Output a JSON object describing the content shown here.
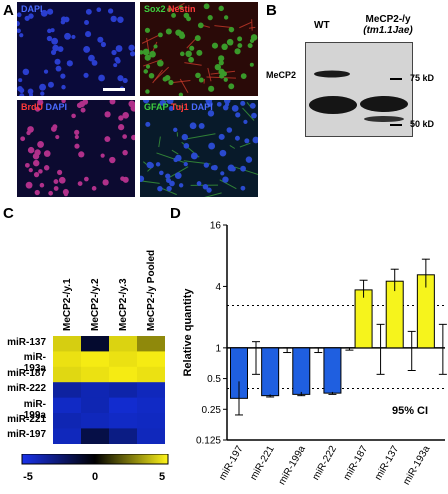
{
  "panels": {
    "a": "A",
    "b": "B",
    "c": "C",
    "d": "D"
  },
  "micrographs": [
    {
      "tags": [
        {
          "text": "DAPI",
          "color": "#4a6bff"
        }
      ],
      "bg": "#0a0a3a",
      "dot": "#2a3ecf"
    },
    {
      "tags": [
        {
          "text": "Sox2 ",
          "color": "#3ecf3e"
        },
        {
          "text": "Nestin",
          "color": "#ff3a3a"
        }
      ],
      "bg": "#2a0a08",
      "dot": "#3a9a2a"
    },
    {
      "tags": [
        {
          "text": "BrdU ",
          "color": "#ff3a3a"
        },
        {
          "text": "DAPI",
          "color": "#4a6bff"
        }
      ],
      "bg": "#0c0a30",
      "dot": "#b0308a"
    },
    {
      "tags": [
        {
          "text": "GFAP ",
          "color": "#3ecf3e"
        },
        {
          "text": "Tuj1 ",
          "color": "#ff3a3a"
        },
        {
          "text": "DAPI",
          "color": "#4a6bff"
        }
      ],
      "bg": "#081a2a",
      "dot": "#2a4acf"
    }
  ],
  "blot": {
    "wt": "WT",
    "ko_line1": "MeCP2-/y",
    "ko_line2": "(tm1.1Jae)",
    "protein": "MeCP2",
    "marker_hi": "75 kD",
    "marker_lo": "50 kD"
  },
  "heatmap": {
    "columns": [
      "MeCP2-/y.1",
      "MeCP2-/y.2",
      "MeCP2-/y.3",
      "MeCP2-/y Pooled"
    ],
    "rows": [
      "miR-137",
      "miR-193a",
      "miR-187",
      "miR-222",
      "miR-199a",
      "miR-221",
      "miR-197"
    ],
    "values": [
      [
        4.2,
        -1.0,
        4.3,
        2.8
      ],
      [
        4.6,
        4.8,
        4.6,
        4.8
      ],
      [
        4.4,
        4.6,
        4.8,
        4.6
      ],
      [
        -3.4,
        -3.8,
        -3.6,
        -4.0
      ],
      [
        -4.2,
        -3.8,
        -4.4,
        -4.2
      ],
      [
        -3.8,
        -4.0,
        -4.2,
        -4.1
      ],
      [
        -4.0,
        -1.5,
        -2.8,
        -4.0
      ]
    ],
    "scale_ticks": [
      "-5",
      "0",
      "5"
    ]
  },
  "chart_data": {
    "type": "bar",
    "ylabel": "Relative quantity",
    "yscale": "log2",
    "ylim": [
      0.125,
      16
    ],
    "yticks": [
      "16",
      "4",
      "1",
      "0.5",
      "0.25",
      "0.125"
    ],
    "yticks_values": [
      16,
      4,
      1,
      0.5,
      0.25,
      0.125
    ],
    "ci_label": "95% CI",
    "ci_lines": [
      2.6,
      0.4
    ],
    "categories": [
      "miR-197",
      "miR-221",
      "miR-199a",
      "miR-222",
      "miR-187",
      "miR-137",
      "miR-193a"
    ],
    "values": [
      0.32,
      0.34,
      0.35,
      0.36,
      3.7,
      4.5,
      5.2
    ],
    "bar_errors": [
      [
        0.22,
        0.47
      ],
      [
        0.33,
        0.35
      ],
      [
        0.34,
        0.37
      ],
      [
        0.35,
        0.37
      ],
      [
        3.1,
        4.6
      ],
      [
        3.6,
        5.9
      ],
      [
        3.9,
        7.4
      ]
    ],
    "ci_whiskers": [
      [
        0.55,
        1.15
      ],
      [
        0.9,
        1.0
      ],
      [
        0.9,
        1.0
      ],
      [
        0.95,
        1.0
      ],
      [
        0.55,
        1.7
      ],
      [
        0.6,
        1.45
      ],
      [
        0.55,
        1.7
      ]
    ],
    "colors": {
      "down": "#1f5fe0",
      "up": "#f6f41c",
      "edge": "#000000"
    }
  }
}
